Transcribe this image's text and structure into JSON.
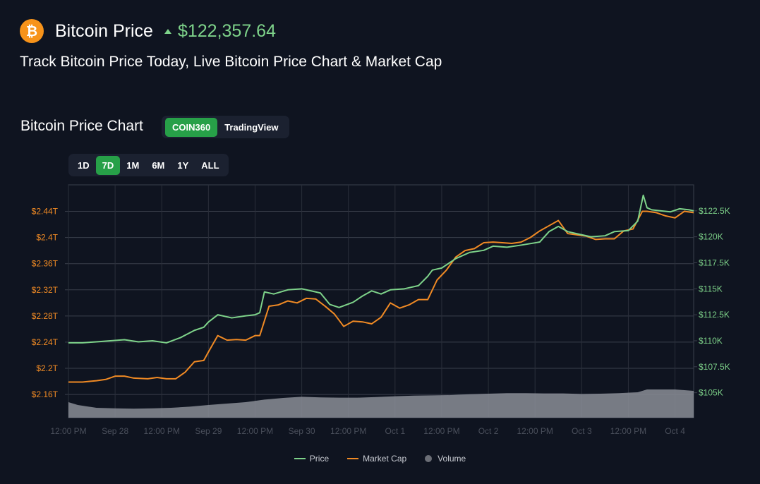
{
  "header": {
    "coin_symbol_glyph": "₿",
    "coin_name": "Bitcoin Price",
    "price": "$122,357.64",
    "subtitle": "Track Bitcoin Price Today, Live Bitcoin Price Chart & Market Cap"
  },
  "chart_section": {
    "title": "Bitcoin Price Chart",
    "sources": [
      "COIN360",
      "TradingView"
    ],
    "active_source": "COIN360",
    "ranges": [
      "1D",
      "7D",
      "1M",
      "6M",
      "1Y",
      "ALL"
    ],
    "active_range": "7D"
  },
  "colors": {
    "price": "#7ed38a",
    "market_cap": "#f08a24",
    "volume": "#8a8d96",
    "accent": "#27a048",
    "bitcoin": "#f7931a"
  },
  "icons": {
    "coin": "bitcoin-icon",
    "trend": "price-up-icon"
  },
  "chart_data": {
    "type": "line",
    "x_tick_labels": [
      "12:00 PM",
      "Sep 28",
      "12:00 PM",
      "Sep 29",
      "12:00 PM",
      "Sep 30",
      "12:00 PM",
      "Oct 1",
      "12:00 PM",
      "Oct 2",
      "12:00 PM",
      "Oct 3",
      "12:00 PM",
      "Oct 4"
    ],
    "x_tick_positions": [
      0.5,
      1,
      1.5,
      2,
      2.5,
      3,
      3.5,
      4,
      4.5,
      5,
      5.5,
      6,
      6.5,
      7
    ],
    "x_range": [
      0.5,
      7.2
    ],
    "left_axis": {
      "label": "Market Cap",
      "ticks": [
        "$2.16T",
        "$2.2T",
        "$2.24T",
        "$2.28T",
        "$2.32T",
        "$2.36T",
        "$2.4T",
        "$2.44T"
      ],
      "tick_values": [
        2.16,
        2.2,
        2.24,
        2.28,
        2.32,
        2.36,
        2.4,
        2.44
      ],
      "range": [
        2.1245,
        2.4805
      ],
      "color": "#f08a24"
    },
    "right_axis": {
      "label": "Price",
      "ticks": [
        "$105K",
        "$107.5K",
        "$110K",
        "$112.5K",
        "$115K",
        "$117.5K",
        "$120K",
        "$122.5K"
      ],
      "tick_values": [
        105,
        107.5,
        110,
        112.5,
        115,
        117.5,
        120,
        122.5
      ],
      "range": [
        102.6,
        125
      ],
      "color": "#7ed38a"
    },
    "grid": true,
    "legend_position": "bottom-center",
    "series": [
      {
        "name": "Price",
        "axis": "right",
        "unit": "K USD",
        "x": [
          0.5,
          0.65,
          0.8,
          0.95,
          1.1,
          1.25,
          1.4,
          1.55,
          1.7,
          1.85,
          1.95,
          2.0,
          2.1,
          2.25,
          2.4,
          2.5,
          2.55,
          2.6,
          2.7,
          2.85,
          3.0,
          3.1,
          3.2,
          3.3,
          3.4,
          3.55,
          3.65,
          3.75,
          3.85,
          3.95,
          4.1,
          4.25,
          4.35,
          4.4,
          4.5,
          4.65,
          4.8,
          4.95,
          5.05,
          5.2,
          5.35,
          5.55,
          5.65,
          5.75,
          5.85,
          6.0,
          6.1,
          6.25,
          6.35,
          6.5,
          6.6,
          6.66,
          6.7,
          6.75,
          6.85,
          6.95,
          7.05,
          7.15,
          7.2
        ],
        "y": [
          109.8,
          109.8,
          109.9,
          110.0,
          110.1,
          109.9,
          110.0,
          109.8,
          110.3,
          111.0,
          111.3,
          111.8,
          112.5,
          112.2,
          112.4,
          112.5,
          112.7,
          114.7,
          114.5,
          114.9,
          115.0,
          114.8,
          114.6,
          113.5,
          113.2,
          113.7,
          114.3,
          114.8,
          114.5,
          114.9,
          115.0,
          115.3,
          116.2,
          116.8,
          117.0,
          117.9,
          118.5,
          118.7,
          119.1,
          119.0,
          119.2,
          119.5,
          120.5,
          121.0,
          120.5,
          120.2,
          120.0,
          120.1,
          120.5,
          120.6,
          121.5,
          124.0,
          122.8,
          122.6,
          122.5,
          122.4,
          122.7,
          122.6,
          122.5
        ]
      },
      {
        "name": "Market Cap",
        "axis": "left",
        "unit": "T USD",
        "x": [
          0.5,
          0.65,
          0.8,
          0.9,
          1.0,
          1.1,
          1.2,
          1.35,
          1.45,
          1.55,
          1.65,
          1.75,
          1.85,
          1.95,
          2.0,
          2.1,
          2.2,
          2.3,
          2.4,
          2.5,
          2.55,
          2.65,
          2.75,
          2.85,
          2.95,
          3.05,
          3.15,
          3.25,
          3.35,
          3.45,
          3.55,
          3.65,
          3.75,
          3.85,
          3.95,
          4.05,
          4.15,
          4.25,
          4.35,
          4.45,
          4.55,
          4.65,
          4.75,
          4.85,
          4.95,
          5.05,
          5.15,
          5.25,
          5.35,
          5.45,
          5.55,
          5.65,
          5.75,
          5.85,
          5.95,
          6.05,
          6.15,
          6.25,
          6.35,
          6.45,
          6.55,
          6.65,
          6.7,
          6.8,
          6.9,
          7.0,
          7.1,
          7.2
        ],
        "y": [
          2.179,
          2.179,
          2.181,
          2.183,
          2.188,
          2.188,
          2.185,
          2.184,
          2.186,
          2.184,
          2.184,
          2.194,
          2.21,
          2.212,
          2.225,
          2.25,
          2.243,
          2.244,
          2.243,
          2.25,
          2.25,
          2.295,
          2.297,
          2.303,
          2.3,
          2.307,
          2.306,
          2.295,
          2.283,
          2.264,
          2.272,
          2.271,
          2.268,
          2.278,
          2.3,
          2.292,
          2.297,
          2.305,
          2.305,
          2.335,
          2.35,
          2.37,
          2.38,
          2.383,
          2.392,
          2.393,
          2.392,
          2.391,
          2.393,
          2.4,
          2.41,
          2.418,
          2.426,
          2.406,
          2.404,
          2.402,
          2.397,
          2.398,
          2.398,
          2.41,
          2.413,
          2.44,
          2.44,
          2.438,
          2.433,
          2.43,
          2.44,
          2.438
        ]
      },
      {
        "name": "Volume",
        "axis": "none",
        "relative": true,
        "x": [
          0.5,
          0.6,
          0.8,
          1.0,
          1.2,
          1.4,
          1.6,
          1.8,
          2.0,
          2.2,
          2.4,
          2.6,
          2.8,
          3.0,
          3.2,
          3.4,
          3.6,
          3.8,
          4.0,
          4.2,
          4.4,
          4.6,
          4.8,
          5.0,
          5.2,
          5.4,
          5.6,
          5.8,
          6.0,
          6.2,
          6.4,
          6.6,
          6.7,
          6.8,
          7.0,
          7.2
        ],
        "y": [
          0.55,
          0.45,
          0.35,
          0.33,
          0.32,
          0.33,
          0.35,
          0.39,
          0.45,
          0.5,
          0.55,
          0.64,
          0.7,
          0.74,
          0.72,
          0.71,
          0.71,
          0.73,
          0.76,
          0.78,
          0.79,
          0.8,
          0.83,
          0.85,
          0.87,
          0.87,
          0.86,
          0.86,
          0.84,
          0.85,
          0.87,
          0.9,
          1.0,
          1.0,
          1.0,
          0.95
        ]
      }
    ]
  },
  "legend": {
    "price": "Price",
    "market_cap": "Market Cap",
    "volume": "Volume"
  }
}
